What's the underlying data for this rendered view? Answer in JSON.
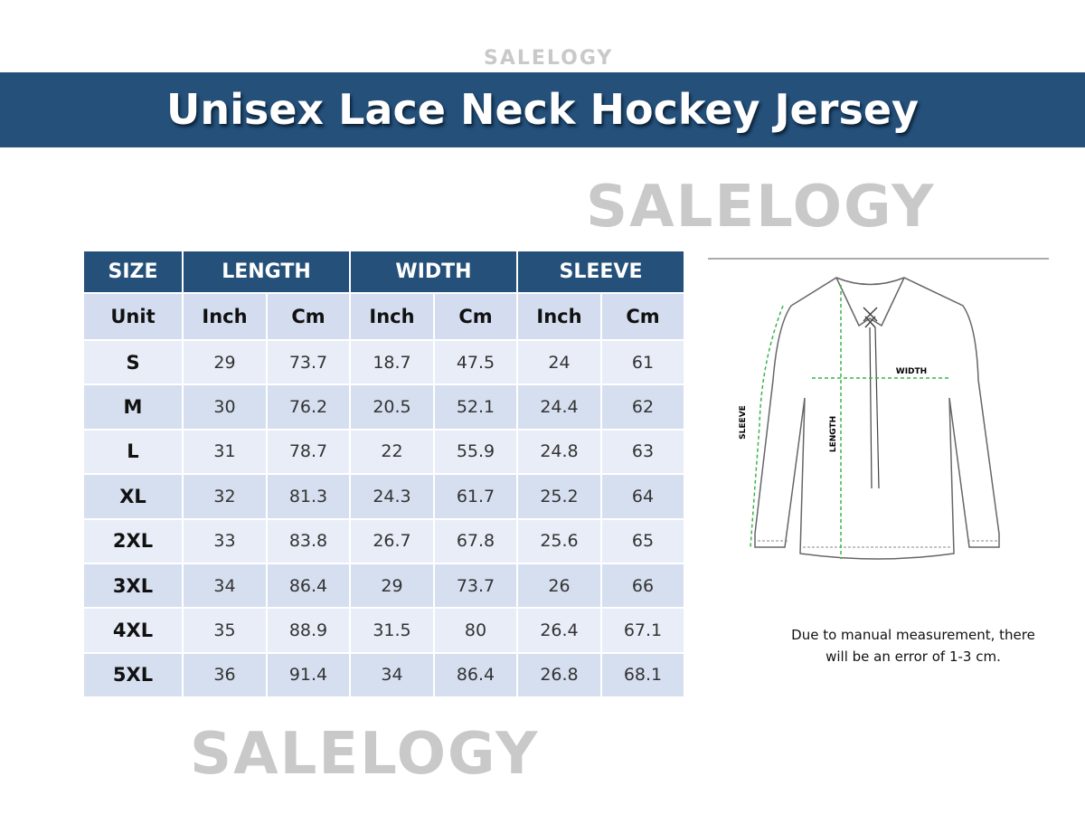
{
  "watermarks": [
    "SALELOGY",
    "SALELOGY",
    "SALELOGY"
  ],
  "header": {
    "title": "Unisex Lace Neck Hockey Jersey"
  },
  "table": {
    "groups": [
      "SIZE",
      "LENGTH",
      "WIDTH",
      "SLEEVE"
    ],
    "units": [
      "Unit",
      "Inch",
      "Cm",
      "Inch",
      "Cm",
      "Inch",
      "Cm"
    ],
    "rows": [
      [
        "S",
        29,
        73.7,
        18.7,
        47.5,
        24,
        61
      ],
      [
        "M",
        30,
        76.2,
        20.5,
        52.1,
        24.4,
        62
      ],
      [
        "L",
        31,
        78.7,
        22,
        55.9,
        24.8,
        63
      ],
      [
        "XL",
        32,
        81.3,
        24.3,
        61.7,
        25.2,
        64
      ],
      [
        "2XL",
        33,
        83.8,
        26.7,
        67.8,
        25.6,
        65
      ],
      [
        "3XL",
        34,
        86.4,
        29,
        73.7,
        26,
        66
      ],
      [
        "4XL",
        35,
        88.9,
        31.5,
        80,
        26.4,
        67.1
      ],
      [
        "5XL",
        36,
        91.4,
        34,
        86.4,
        26.8,
        68.1
      ]
    ]
  },
  "diagram": {
    "labels": {
      "width": "WIDTH",
      "length": "LENGTH",
      "sleeve": "SLEEVE"
    }
  },
  "note": [
    "Due to manual measurement, there",
    "will be an error of 1-3 cm."
  ]
}
